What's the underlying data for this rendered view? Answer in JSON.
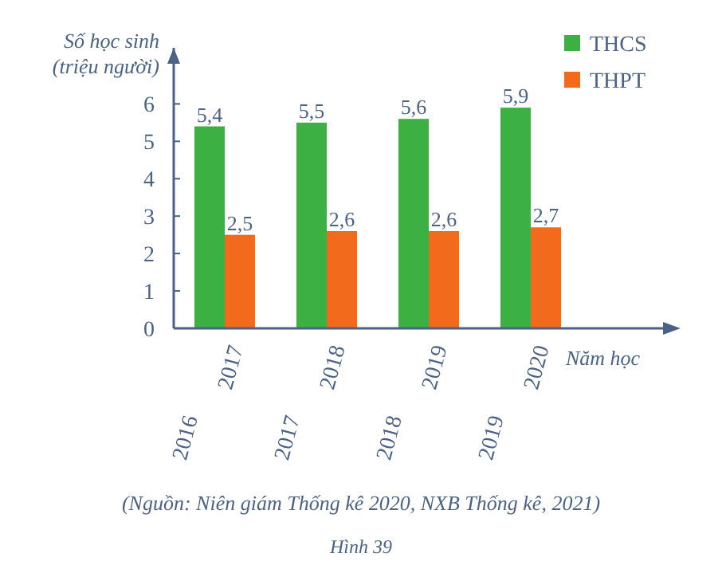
{
  "chart_data": {
    "type": "bar",
    "ylabel": "Số học sinh (triệu người)",
    "xlabel": "Năm học",
    "categories": [
      "2016 2017",
      "2017 2018",
      "2018 2019",
      "2019 2020"
    ],
    "series": [
      {
        "name": "THCS",
        "color": "#3cb043",
        "values": [
          5.4,
          5.5,
          5.6,
          5.9
        ],
        "value_labels": [
          "5,4",
          "5,5",
          "5,6",
          "5,9"
        ]
      },
      {
        "name": "THPT",
        "color": "#f26b1d",
        "values": [
          2.5,
          2.6,
          2.6,
          2.7
        ],
        "value_labels": [
          "2,5",
          "2,6",
          "2,6",
          "2,7"
        ]
      }
    ],
    "ylim": [
      0,
      7.5
    ],
    "yticks": [
      0,
      1,
      2,
      3,
      4,
      5,
      6
    ],
    "legend": "top right",
    "annotations": [
      "(Nguồn: Niên giám Thống kê 2020, NXB Thống kê, 2021)",
      "Hình 39"
    ]
  }
}
